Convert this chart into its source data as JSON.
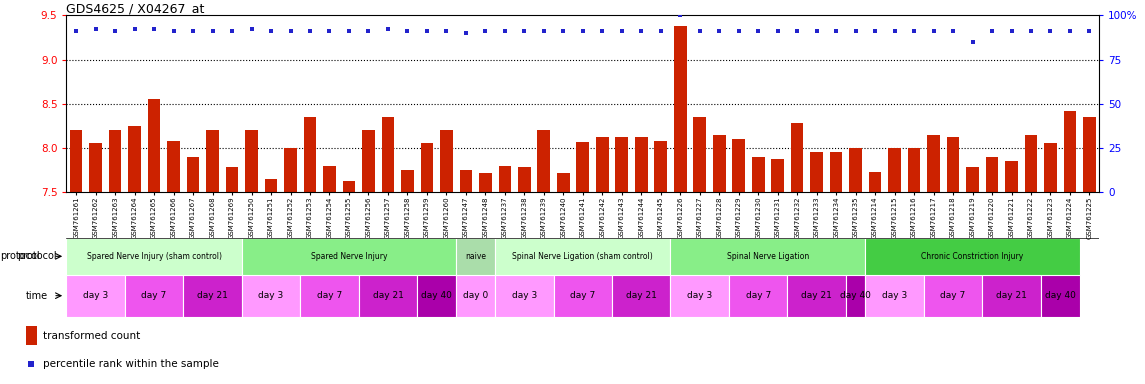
{
  "title": "GDS4625 / X04267_at",
  "samples": [
    "GSM761261",
    "GSM761262",
    "GSM761263",
    "GSM761264",
    "GSM761265",
    "GSM761266",
    "GSM761267",
    "GSM761268",
    "GSM761269",
    "GSM761250",
    "GSM761251",
    "GSM761252",
    "GSM761253",
    "GSM761254",
    "GSM761255",
    "GSM761256",
    "GSM761257",
    "GSM761258",
    "GSM761259",
    "GSM761260",
    "GSM761247",
    "GSM761248",
    "GSM761237",
    "GSM761238",
    "GSM761239",
    "GSM761240",
    "GSM761241",
    "GSM761242",
    "GSM761243",
    "GSM761244",
    "GSM761245",
    "GSM761226",
    "GSM761227",
    "GSM761228",
    "GSM761229",
    "GSM761230",
    "GSM761231",
    "GSM761232",
    "GSM761233",
    "GSM761234",
    "GSM761235",
    "GSM761214",
    "GSM761215",
    "GSM761216",
    "GSM761217",
    "GSM761218",
    "GSM761219",
    "GSM761220",
    "GSM761221",
    "GSM761222",
    "GSM761223",
    "GSM761224",
    "GSM761225"
  ],
  "bar_values": [
    8.2,
    8.05,
    8.2,
    8.25,
    8.55,
    8.08,
    7.9,
    8.2,
    7.78,
    8.2,
    7.65,
    8.0,
    8.35,
    7.8,
    7.62,
    8.2,
    8.35,
    7.75,
    8.05,
    8.2,
    7.75,
    7.72,
    7.8,
    7.78,
    8.2,
    7.72,
    8.07,
    8.12,
    8.12,
    8.12,
    8.08,
    9.38,
    8.35,
    8.15,
    8.1,
    7.9,
    7.87,
    8.28,
    7.95,
    7.95,
    8.0,
    7.73,
    8.0,
    8.0,
    8.15,
    8.12,
    7.78,
    7.9,
    7.85,
    8.14,
    8.05,
    8.42,
    8.35
  ],
  "dot_values": [
    91,
    92,
    91,
    92,
    92,
    91,
    91,
    91,
    91,
    92,
    91,
    91,
    91,
    91,
    91,
    91,
    92,
    91,
    91,
    91,
    90,
    91,
    91,
    91,
    91,
    91,
    91,
    91,
    91,
    91,
    91,
    100,
    91,
    91,
    91,
    91,
    91,
    91,
    91,
    91,
    91,
    91,
    91,
    91,
    91,
    91,
    85,
    91,
    91,
    91,
    91,
    91,
    91
  ],
  "ylim_left": [
    7.5,
    9.5
  ],
  "ylim_right": [
    0,
    100
  ],
  "yticks_left": [
    7.5,
    8.0,
    8.5,
    9.0,
    9.5
  ],
  "yticks_right": [
    0,
    25,
    50,
    75,
    100
  ],
  "bar_color": "#cc2200",
  "dot_color": "#2222cc",
  "bar_baseline": 7.5,
  "protocols": [
    {
      "label": "Spared Nerve Injury (sham control)",
      "start": 0,
      "end": 9,
      "color": "#ccffcc"
    },
    {
      "label": "Spared Nerve Injury",
      "start": 9,
      "end": 20,
      "color": "#88ee88"
    },
    {
      "label": "naive",
      "start": 20,
      "end": 22,
      "color": "#aaddaa"
    },
    {
      "label": "Spinal Nerve Ligation (sham control)",
      "start": 22,
      "end": 31,
      "color": "#ccffcc"
    },
    {
      "label": "Spinal Nerve Ligation",
      "start": 31,
      "end": 41,
      "color": "#88ee88"
    },
    {
      "label": "Chronic Constriction Injury",
      "start": 41,
      "end": 52,
      "color": "#44cc44"
    }
  ],
  "time_blocks": [
    {
      "label": "day 3",
      "start": 0,
      "end": 3
    },
    {
      "label": "day 7",
      "start": 3,
      "end": 6
    },
    {
      "label": "day 21",
      "start": 6,
      "end": 9
    },
    {
      "label": "day 3",
      "start": 9,
      "end": 12
    },
    {
      "label": "day 7",
      "start": 12,
      "end": 15
    },
    {
      "label": "day 21",
      "start": 15,
      "end": 18
    },
    {
      "label": "day 40",
      "start": 18,
      "end": 20
    },
    {
      "label": "day 0",
      "start": 20,
      "end": 22
    },
    {
      "label": "day 3",
      "start": 22,
      "end": 25
    },
    {
      "label": "day 7",
      "start": 25,
      "end": 28
    },
    {
      "label": "day 21",
      "start": 28,
      "end": 31
    },
    {
      "label": "day 3",
      "start": 31,
      "end": 34
    },
    {
      "label": "day 7",
      "start": 34,
      "end": 37
    },
    {
      "label": "day 21",
      "start": 37,
      "end": 40
    },
    {
      "label": "day 40",
      "start": 40,
      "end": 41
    },
    {
      "label": "day 3",
      "start": 41,
      "end": 44
    },
    {
      "label": "day 7",
      "start": 44,
      "end": 47
    },
    {
      "label": "day 21",
      "start": 47,
      "end": 50
    },
    {
      "label": "day 40",
      "start": 50,
      "end": 52
    }
  ],
  "time_colors": {
    "day 0": "#ff99ff",
    "day 3": "#ff99ff",
    "day 7": "#ee55ee",
    "day 21": "#cc22cc",
    "day 40": "#aa00aa"
  },
  "background_color": "#ffffff"
}
